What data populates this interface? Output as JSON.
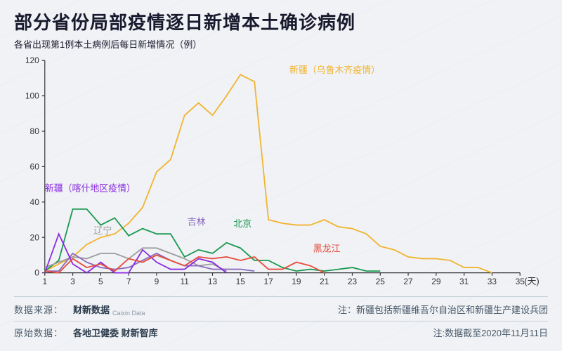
{
  "title": "部分省份局部疫情逐日新增本土确诊病例",
  "subtitle": "各省出现第1例本土病例后每日新增情况（例）",
  "chart": {
    "type": "line",
    "xlim": [
      1,
      35
    ],
    "ylim": [
      0,
      120
    ],
    "xtick_step": 2,
    "ytick_step": 20,
    "x_ticks": [
      1,
      3,
      5,
      7,
      9,
      11,
      13,
      15,
      17,
      19,
      21,
      23,
      25,
      27,
      29,
      31,
      33,
      35
    ],
    "y_ticks": [
      0,
      20,
      40,
      60,
      80,
      100,
      120
    ],
    "x_unit_label": "(天)",
    "axis_color": "#333333",
    "background_color": "#f0f2f5",
    "line_width": 1.8,
    "tick_fontsize": 12,
    "label_fontsize": 13,
    "series": [
      {
        "id": "xinjiang_urumqi",
        "label": "新疆（乌鲁木齐疫情）",
        "color": "#f2b430",
        "label_x": 18.5,
        "label_y": 113,
        "points": [
          [
            1,
            1
          ],
          [
            2,
            5
          ],
          [
            3,
            9
          ],
          [
            4,
            16
          ],
          [
            5,
            20
          ],
          [
            6,
            22
          ],
          [
            7,
            28
          ],
          [
            8,
            37
          ],
          [
            9,
            57
          ],
          [
            10,
            64
          ],
          [
            11,
            89
          ],
          [
            12,
            96
          ],
          [
            13,
            89
          ],
          [
            14,
            100
          ],
          [
            15,
            112
          ],
          [
            16,
            108
          ],
          [
            17,
            30
          ],
          [
            18,
            28
          ],
          [
            19,
            27
          ],
          [
            20,
            27
          ],
          [
            21,
            30
          ],
          [
            22,
            26
          ],
          [
            23,
            25
          ],
          [
            24,
            22
          ],
          [
            25,
            15
          ],
          [
            26,
            13
          ],
          [
            27,
            9
          ],
          [
            28,
            8
          ],
          [
            29,
            8
          ],
          [
            30,
            7
          ],
          [
            31,
            3
          ],
          [
            32,
            3
          ],
          [
            33,
            0
          ]
        ]
      },
      {
        "id": "beijing",
        "label": "北京",
        "color": "#1a9850",
        "label_x": 14.5,
        "label_y": 26,
        "points": [
          [
            1,
            1
          ],
          [
            2,
            7
          ],
          [
            3,
            36
          ],
          [
            4,
            36
          ],
          [
            5,
            27
          ],
          [
            6,
            31
          ],
          [
            7,
            21
          ],
          [
            8,
            25
          ],
          [
            9,
            22
          ],
          [
            10,
            22
          ],
          [
            11,
            9
          ],
          [
            12,
            13
          ],
          [
            13,
            11
          ],
          [
            14,
            17
          ],
          [
            15,
            14
          ],
          [
            16,
            7
          ],
          [
            17,
            7
          ],
          [
            18,
            3
          ],
          [
            19,
            1
          ],
          [
            20,
            2
          ],
          [
            21,
            1
          ],
          [
            22,
            2
          ],
          [
            23,
            3
          ],
          [
            24,
            1
          ],
          [
            25,
            1
          ]
        ]
      },
      {
        "id": "liaoning",
        "label": "辽宁",
        "color": "#9e9e9e",
        "label_x": 4.5,
        "label_y": 22,
        "points": [
          [
            1,
            3
          ],
          [
            2,
            6
          ],
          [
            3,
            9
          ],
          [
            4,
            8
          ],
          [
            5,
            11
          ],
          [
            6,
            11
          ],
          [
            7,
            8
          ],
          [
            8,
            14
          ],
          [
            9,
            14
          ],
          [
            10,
            11
          ],
          [
            11,
            8
          ],
          [
            12,
            4
          ],
          [
            13,
            5
          ],
          [
            14,
            1
          ]
        ]
      },
      {
        "id": "jilin",
        "label": "吉林",
        "color": "#8a6bbd",
        "label_x": 11.2,
        "label_y": 27,
        "points": [
          [
            1,
            1
          ],
          [
            2,
            1
          ],
          [
            3,
            11
          ],
          [
            4,
            6
          ],
          [
            5,
            3
          ],
          [
            6,
            2
          ],
          [
            7,
            3
          ],
          [
            8,
            7
          ],
          [
            9,
            11
          ],
          [
            10,
            7
          ],
          [
            11,
            4
          ],
          [
            12,
            4
          ],
          [
            13,
            2
          ],
          [
            14,
            2
          ],
          [
            15,
            2
          ],
          [
            16,
            1
          ]
        ]
      },
      {
        "id": "xinjiang_kashgar",
        "label": "新疆（喀什地区疫情）",
        "color": "#8a2be2",
        "label_x": 1.0,
        "label_y": 46,
        "points": [
          [
            1,
            0
          ],
          [
            2,
            22
          ],
          [
            3,
            5
          ],
          [
            4,
            0
          ],
          [
            5,
            6
          ],
          [
            6,
            0
          ],
          [
            7,
            0
          ],
          [
            8,
            13
          ],
          [
            9,
            6
          ],
          [
            10,
            2
          ],
          [
            11,
            2
          ],
          [
            12,
            8
          ],
          [
            13,
            6
          ],
          [
            14,
            0
          ]
        ]
      },
      {
        "id": "heilongjiang",
        "label": "黑龙江",
        "color": "#e74c3c",
        "label_x": 20.2,
        "label_y": 12,
        "points": [
          [
            1,
            1
          ],
          [
            2,
            0
          ],
          [
            3,
            8
          ],
          [
            4,
            3
          ],
          [
            5,
            5
          ],
          [
            6,
            1
          ],
          [
            7,
            8
          ],
          [
            8,
            6
          ],
          [
            9,
            10
          ],
          [
            10,
            7
          ],
          [
            11,
            4
          ],
          [
            12,
            9
          ],
          [
            13,
            8
          ],
          [
            14,
            9
          ],
          [
            15,
            7
          ],
          [
            16,
            9
          ],
          [
            17,
            2
          ],
          [
            18,
            2
          ],
          [
            19,
            6
          ],
          [
            20,
            4
          ],
          [
            21,
            0
          ]
        ]
      }
    ]
  },
  "footer": {
    "source_label": "数据来源：",
    "source_value": "财新数据",
    "source_sub": "Caixin Data",
    "note1": "注：新疆包括新疆维吾尔自治区和新疆生产建设兵团",
    "raw_label": "原始数据：",
    "raw_value": "各地卫健委 财新智库",
    "note2": "注:数据截至2020年11月11日"
  }
}
